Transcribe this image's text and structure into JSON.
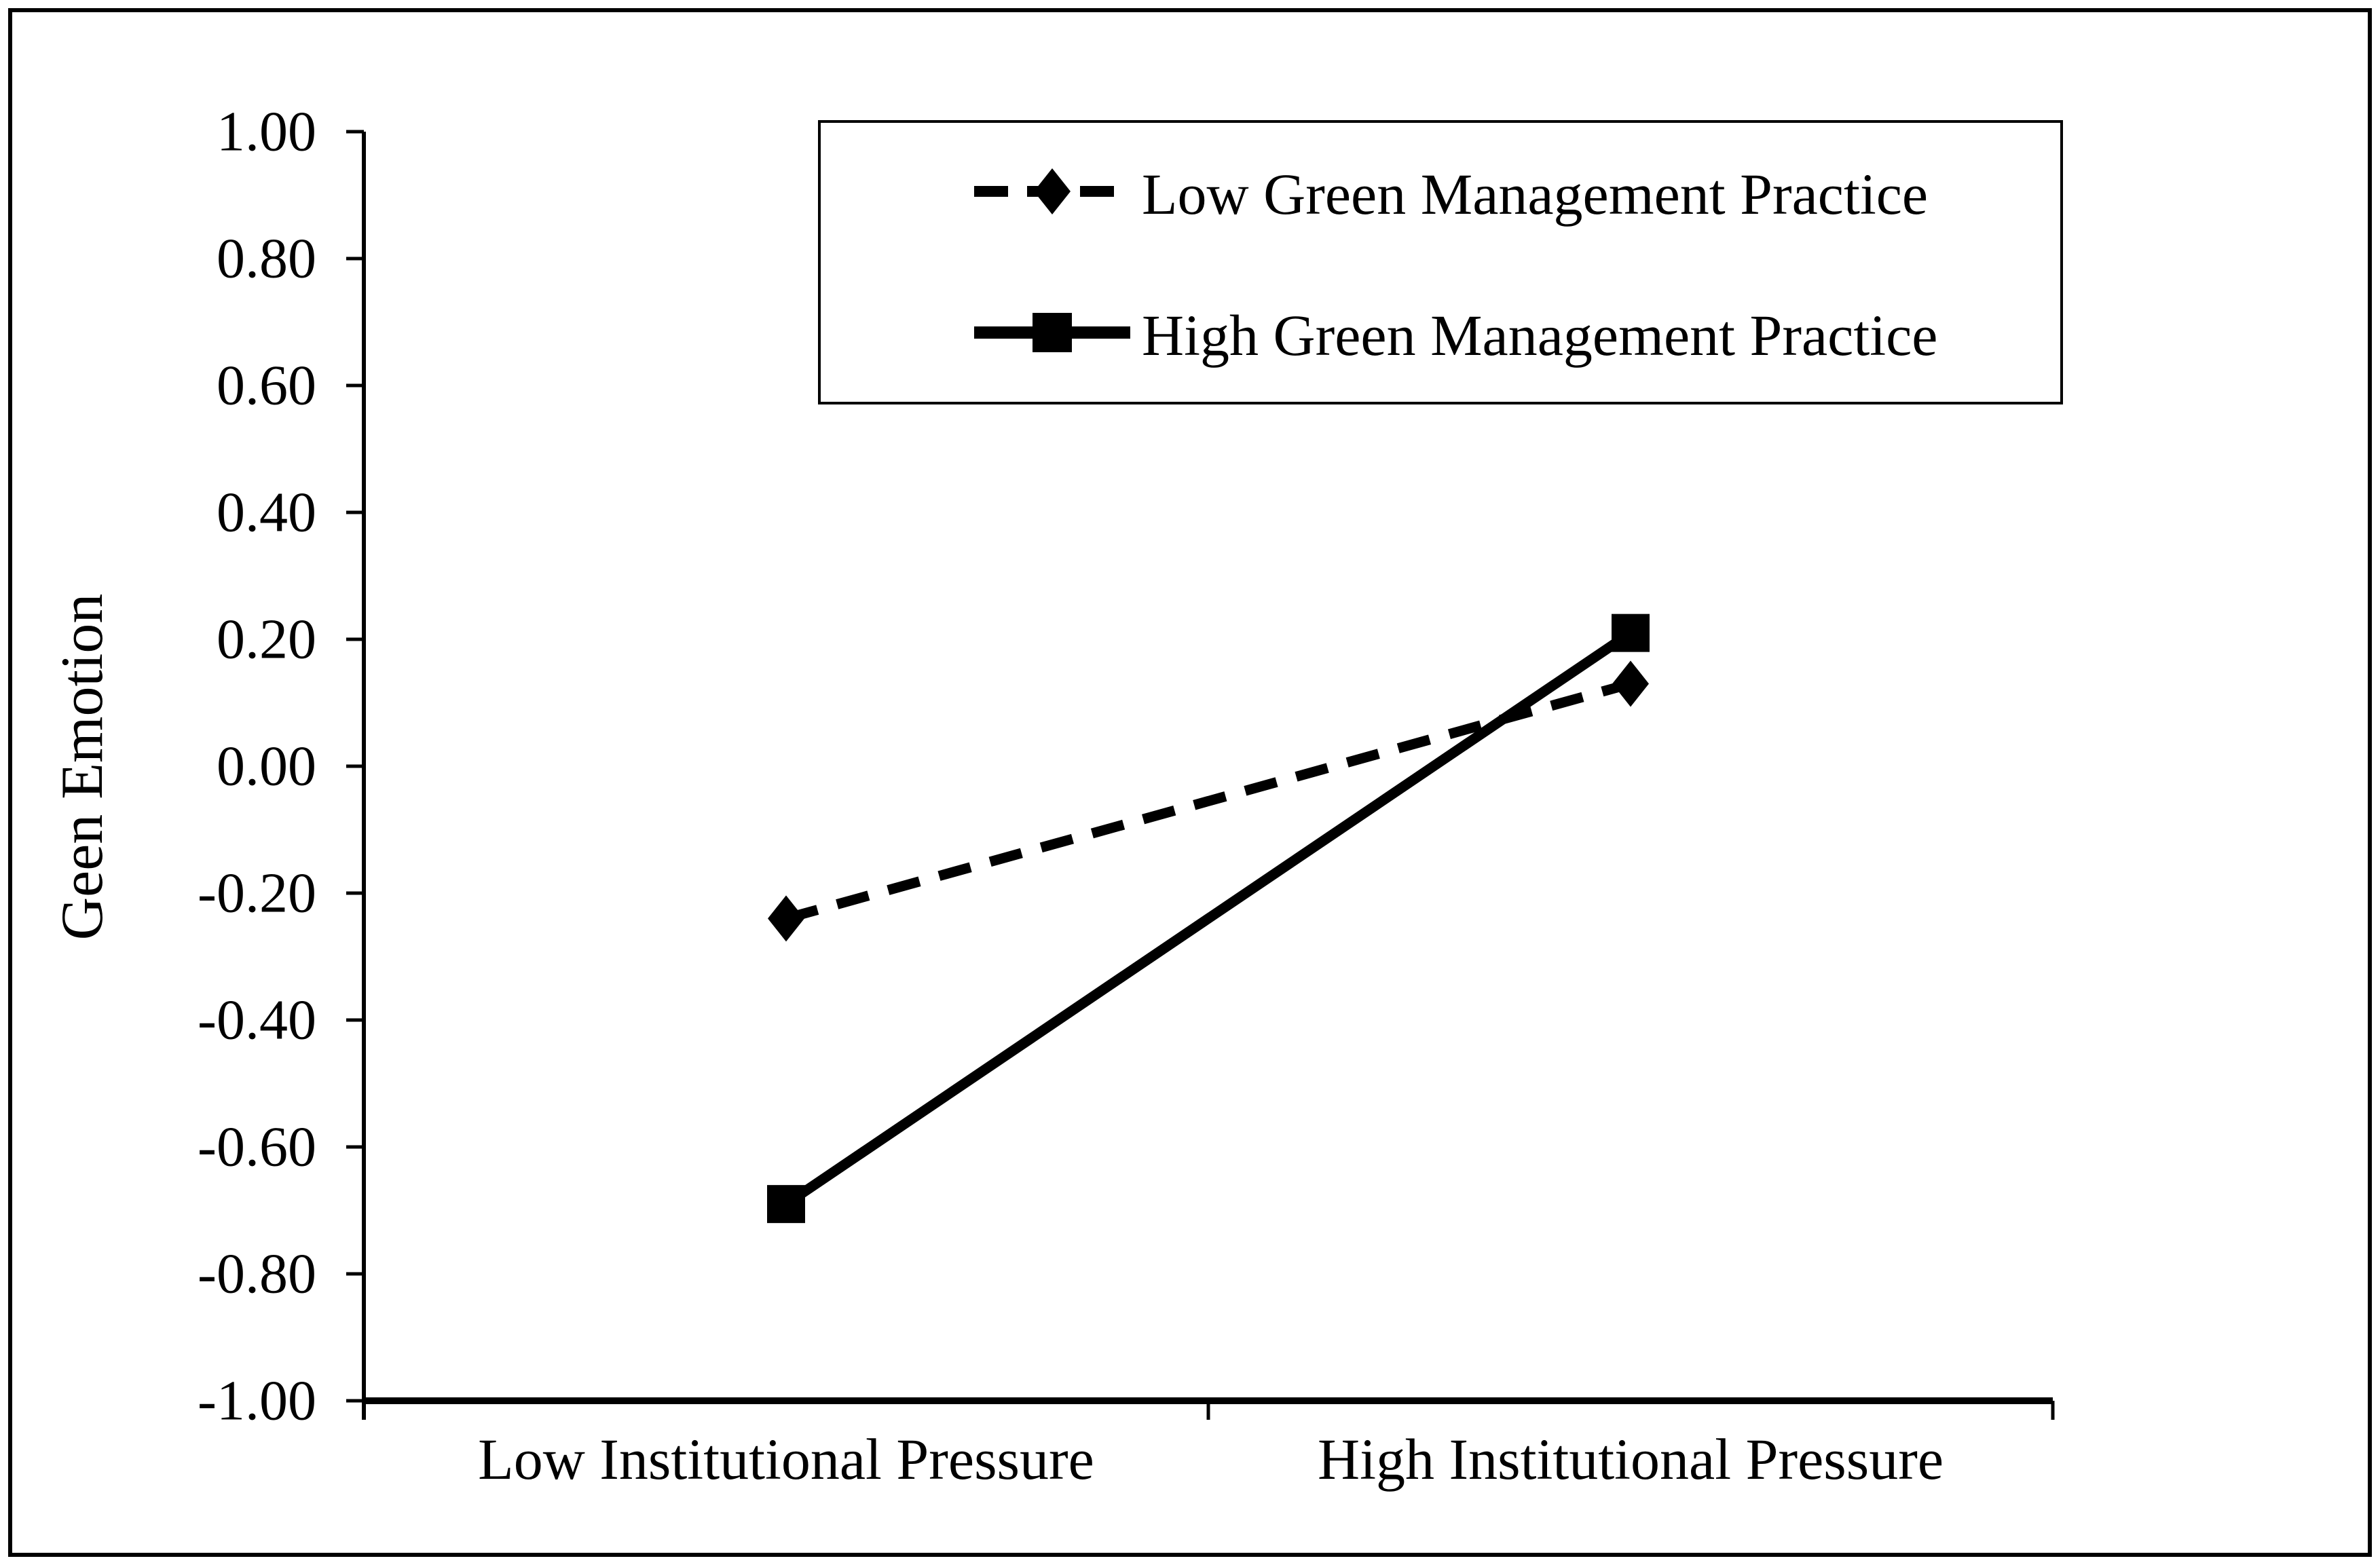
{
  "chart_data": {
    "type": "line",
    "title": "",
    "ylabel": "Geen Emotion",
    "xlabel": "",
    "categories": [
      "Low Institutional Pressure",
      "High Institutional Pressure"
    ],
    "series": [
      {
        "name": "Low Green Management Practice",
        "values": [
          -0.24,
          0.13
        ],
        "line_style": "dashed",
        "marker": "diamond",
        "color": "#000000"
      },
      {
        "name": "High Green Management Practice",
        "values": [
          -0.69,
          0.21
        ],
        "line_style": "solid",
        "marker": "square",
        "color": "#000000"
      }
    ],
    "ylim": [
      -1.0,
      1.0
    ],
    "ytick_step": 0.2,
    "ytick_labels": [
      "1.00",
      "0.80",
      "0.60",
      "0.40",
      "0.20",
      "0.00",
      "-0.20",
      "-0.40",
      "-0.60",
      "-0.80",
      "-1.00"
    ],
    "grid": false,
    "legend_position": "top-center",
    "colors": {
      "foreground": "#000000",
      "background": "#ffffff",
      "border": "#000000"
    }
  }
}
